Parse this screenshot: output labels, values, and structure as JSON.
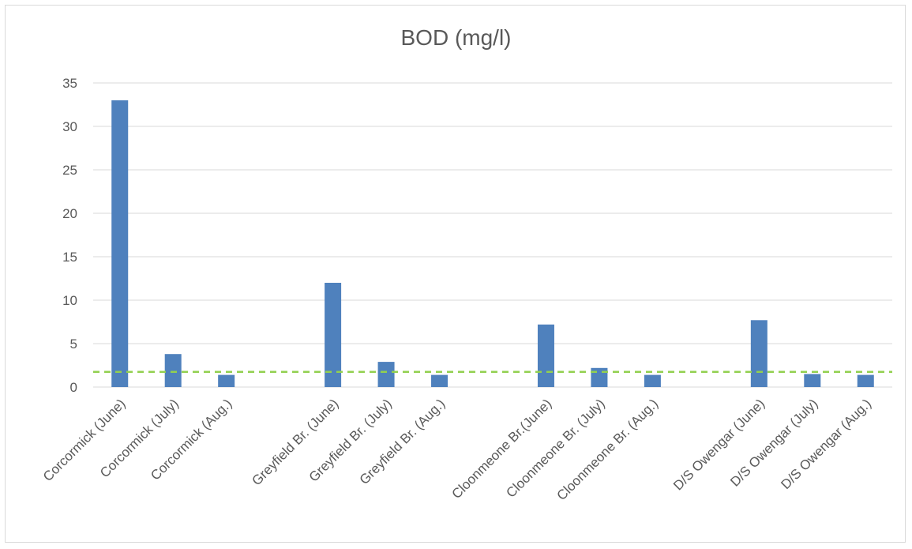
{
  "chart_data": {
    "type": "bar",
    "title": "BOD (mg/l)",
    "xlabel": "",
    "ylabel": "",
    "ylim": [
      0,
      35
    ],
    "yticks": [
      0,
      5,
      10,
      15,
      20,
      25,
      30,
      35
    ],
    "grid": true,
    "legend": "none",
    "bar_color": "#4f81bd",
    "reference_line": {
      "value": 1.75,
      "color": "#92d050",
      "style": "dashed"
    },
    "categories": [
      "Corcormick (June)",
      "Corcormick (July)",
      "Corcormick (Aug.)",
      "",
      "Greyfield Br. (June)",
      "Greyfield Br. (July)",
      "Greyfield Br. (Aug.)",
      "",
      "Cloonmeone Br.(June)",
      "Cloonmeone Br. (July)",
      "Cloonmeone Br. (Aug.)",
      "",
      "D/S Owengar (June)",
      "D/S Owengar (July)",
      "D/S Owengar (Aug.)"
    ],
    "values": [
      33,
      3.8,
      1.4,
      null,
      12,
      2.9,
      1.4,
      null,
      7.2,
      2.2,
      1.4,
      null,
      7.7,
      1.5,
      1.4
    ]
  }
}
